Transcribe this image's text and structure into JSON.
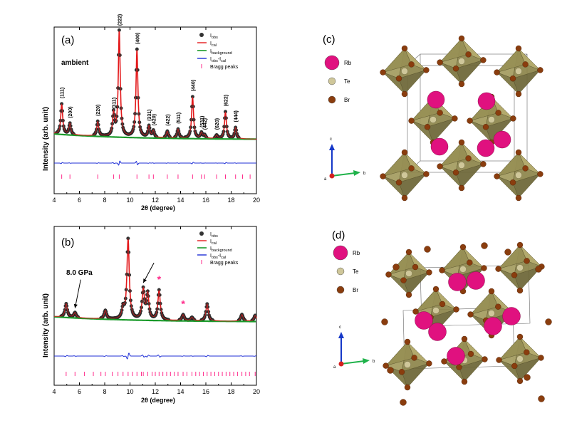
{
  "panels": {
    "a": {
      "label": "(a)",
      "condition": "ambient",
      "legend": [
        "I_obs",
        "I_cal",
        "I_background",
        "I_obs-I_cal",
        "Bragg peaks"
      ],
      "peak_labels": [
        "(111)",
        "(200)",
        "(220)",
        "(311)",
        "(222)",
        "(400)",
        "(331)",
        "(420)",
        "(422)",
        "(511)",
        "(440)",
        "(531)",
        "(442)",
        "(620)",
        "(622)",
        "(444)"
      ]
    },
    "b": {
      "label": "(b)",
      "condition": "8.0 GPa",
      "star": "*",
      "legend": [
        "I_obs",
        "I_cal",
        "I_background",
        "I_obs-I_cal",
        "Bragg peaks"
      ]
    },
    "c": {
      "label": "(c)",
      "atoms": [
        "Rb",
        "Te",
        "Br"
      ],
      "axes": [
        "c",
        "a",
        "b"
      ]
    },
    "d": {
      "label": "(d)",
      "atoms": [
        "Rb",
        "Te",
        "Br"
      ],
      "axes": [
        "c",
        "a",
        "b"
      ]
    }
  },
  "axis_text": {
    "ylabel": "Intensity (arb. unit)",
    "xlabel": "2θ (degree)",
    "xticks": [
      "4",
      "6",
      "8",
      "10",
      "12",
      "14",
      "16",
      "18",
      "20"
    ]
  },
  "colors": {
    "obs": "#333333",
    "cal": "#e31a1c",
    "background": "#1a9a2a",
    "diff": "#1f2fd6",
    "bragg": "#ff2a8a",
    "rb": "#e0117f",
    "te": "#cfc79a",
    "br": "#8a3d0e",
    "octa": "#8f874e"
  },
  "chart_data": [
    {
      "type": "line",
      "panel": "a",
      "xlabel": "2θ (degree)",
      "ylabel": "Intensity (arb. unit)",
      "xlim": [
        4,
        20
      ],
      "ylim": [
        0,
        1
      ],
      "peaks": [
        {
          "x": 4.6,
          "h": 0.27,
          "label": "(111)"
        },
        {
          "x": 5.25,
          "h": 0.1,
          "label": "(200)"
        },
        {
          "x": 7.45,
          "h": 0.13,
          "label": "(220)"
        },
        {
          "x": 8.7,
          "h": 0.2,
          "label": "(311)"
        },
        {
          "x": 9.15,
          "h": 0.94,
          "label": "(222)"
        },
        {
          "x": 10.55,
          "h": 0.78,
          "label": "(400)"
        },
        {
          "x": 11.5,
          "h": 0.1,
          "label": "(331)"
        },
        {
          "x": 11.85,
          "h": 0.06,
          "label": "(420)"
        },
        {
          "x": 12.95,
          "h": 0.06,
          "label": "(422)"
        },
        {
          "x": 13.8,
          "h": 0.08,
          "label": "(511)"
        },
        {
          "x": 14.95,
          "h": 0.37,
          "label": "(440)"
        },
        {
          "x": 15.65,
          "h": 0.05,
          "label": "(531)"
        },
        {
          "x": 15.9,
          "h": 0.03,
          "label": "(442)"
        },
        {
          "x": 16.85,
          "h": 0.03,
          "label": "(620)"
        },
        {
          "x": 17.55,
          "h": 0.24,
          "label": "(622)"
        },
        {
          "x": 18.35,
          "h": 0.1,
          "label": "(444)"
        }
      ],
      "bragg_ticks": [
        4.6,
        5.25,
        7.45,
        8.7,
        9.15,
        10.55,
        11.5,
        11.85,
        12.95,
        13.8,
        14.95,
        15.65,
        15.9,
        16.85,
        17.55,
        18.35,
        18.9,
        19.5
      ]
    },
    {
      "type": "line",
      "panel": "b",
      "xlabel": "2θ (degree)",
      "ylabel": "Intensity (arb. unit)",
      "xlim": [
        4,
        20
      ],
      "ylim": [
        0,
        1
      ],
      "peaks": [
        {
          "x": 4.95,
          "h": 0.16
        },
        {
          "x": 5.65,
          "h": 0.06
        },
        {
          "x": 8.05,
          "h": 0.1
        },
        {
          "x": 9.45,
          "h": 0.12
        },
        {
          "x": 9.85,
          "h": 0.94
        },
        {
          "x": 11.05,
          "h": 0.35
        },
        {
          "x": 11.4,
          "h": 0.3
        },
        {
          "x": 12.3,
          "h": 0.35
        },
        {
          "x": 14.2,
          "h": 0.07
        },
        {
          "x": 14.9,
          "h": 0.04
        },
        {
          "x": 16.1,
          "h": 0.2
        },
        {
          "x": 18.85,
          "h": 0.08
        },
        {
          "x": 19.9,
          "h": 0.07
        }
      ],
      "bragg_ticks": [
        4.95,
        5.65,
        6.4,
        7.1,
        7.7,
        8.05,
        8.6,
        9.05,
        9.45,
        9.85,
        10.2,
        10.55,
        10.9,
        11.05,
        11.4,
        11.75,
        12.0,
        12.3,
        12.6,
        12.9,
        13.2,
        13.5,
        13.8,
        14.2,
        14.5,
        14.9,
        15.2,
        15.5,
        15.8,
        16.1,
        16.4,
        16.7,
        17.0,
        17.3,
        17.6,
        17.9,
        18.2,
        18.5,
        18.85,
        19.15,
        19.45,
        19.9
      ],
      "arrows": [
        5.65,
        11.05
      ],
      "stars": [
        12.3,
        14.2
      ]
    }
  ]
}
